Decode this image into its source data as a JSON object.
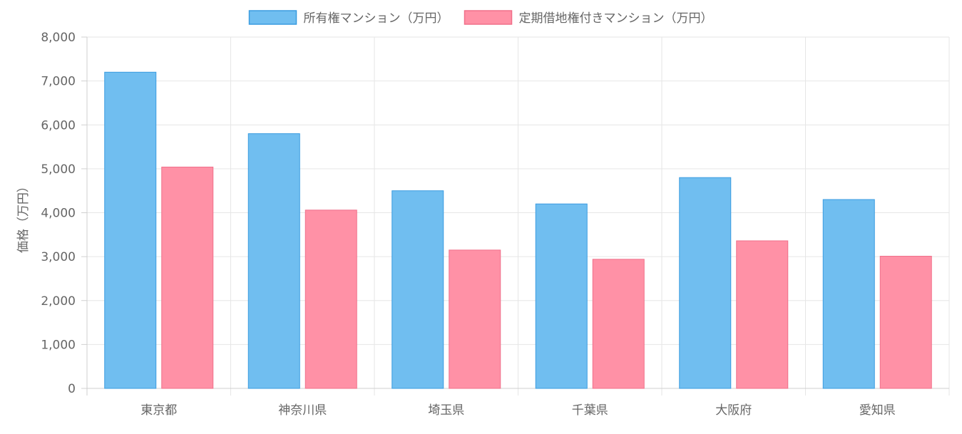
{
  "chart_data": {
    "type": "bar",
    "categories": [
      "東京都",
      "神奈川県",
      "埼玉県",
      "千葉県",
      "大阪府",
      "愛知県"
    ],
    "series": [
      {
        "name": "所有権マンション（万円）",
        "values": [
          7200,
          5800,
          4500,
          4200,
          4800,
          4300
        ],
        "fill": "#70bef0",
        "stroke": "#3a9ce0"
      },
      {
        "name": "定期借地権付きマンション（万円）",
        "values": [
          5040,
          4060,
          3150,
          2940,
          3360,
          3010
        ],
        "fill": "#ff91a6",
        "stroke": "#f0708a"
      }
    ],
    "ylabel": "価格（万円）",
    "xlabel": "",
    "ylim": [
      0,
      8000
    ],
    "y_ticks": [
      0,
      1000,
      2000,
      3000,
      4000,
      5000,
      6000,
      7000,
      8000
    ],
    "grid": true,
    "legend_position": "top-center"
  }
}
